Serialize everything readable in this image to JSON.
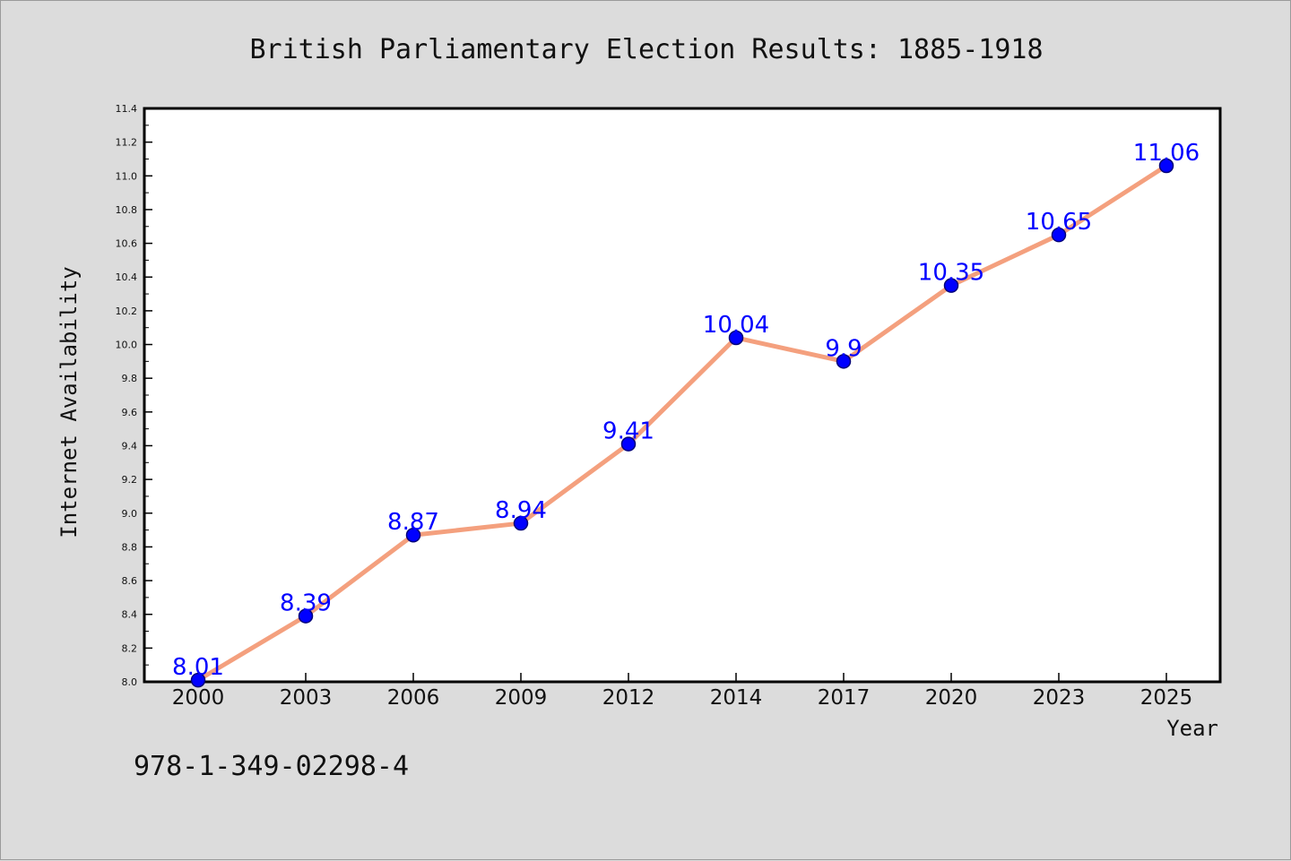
{
  "chart_data": {
    "type": "line",
    "title": "British Parliamentary Election Results: 1885-1918",
    "xlabel": "Year",
    "ylabel": "Internet Availability",
    "categories": [
      "2000",
      "2003",
      "2006",
      "2009",
      "2012",
      "2014",
      "2017",
      "2020",
      "2023",
      "2025"
    ],
    "values": [
      8.01,
      8.39,
      8.87,
      8.94,
      9.41,
      10.04,
      9.9,
      10.35,
      10.65,
      11.06
    ],
    "data_labels": [
      "8.01",
      "8.39",
      "8.87",
      "8.94",
      "9.41",
      "10.04",
      "9.9",
      "10.35",
      "10.65",
      "11.06"
    ],
    "ylim": [
      8.0,
      11.4
    ],
    "yticks": [
      "8.0",
      "8.2",
      "8.4",
      "8.6",
      "8.8",
      "9.0",
      "9.2",
      "9.4",
      "9.6",
      "9.8",
      "10.0",
      "10.2",
      "10.4",
      "10.6",
      "10.8",
      "11.0",
      "11.2",
      "11.4"
    ],
    "grid": false,
    "colors": {
      "line": "#f4a07e",
      "marker": "#0000ff",
      "marker_edge": "#00007a",
      "data_label": "#0000ff"
    }
  },
  "footer": {
    "isbn": "978-1-349-02298-4"
  }
}
